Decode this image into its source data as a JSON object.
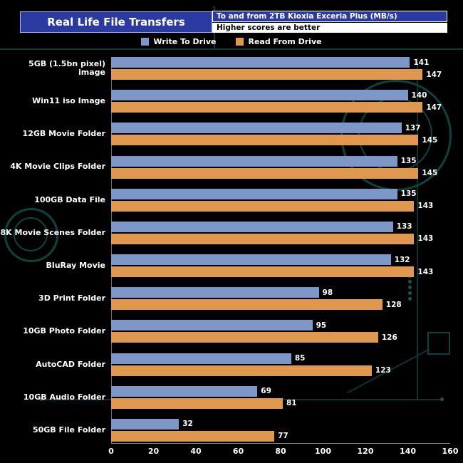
{
  "header": {
    "title": "Real Life File Transfers",
    "subtitle": "To and from 2TB Kioxia Exceria Plus (MB/s)",
    "note": "Higher scores are better"
  },
  "legend": [
    {
      "label": "Write To  Drive",
      "color": "#7d98c8"
    },
    {
      "label": "Read From  Drive",
      "color": "#e0984f"
    }
  ],
  "chart_data": {
    "type": "bar",
    "orientation": "horizontal",
    "title": "Real Life File Transfers",
    "subtitle": "To and from 2TB Kioxia Exceria Plus (MB/s)",
    "note": "Higher scores are better",
    "categories": [
      "5GB (1.5bn pixel) image",
      "Win11 iso Image",
      "12GB Movie Folder",
      "4K Movie Clips Folder",
      "100GB Data File",
      "8K Movie Scenes Folder",
      "BluRay Movie",
      "3D Print Folder",
      "10GB Photo Folder",
      "AutoCAD Folder",
      "10GB Audio Folder",
      "50GB File Folder"
    ],
    "series": [
      {
        "name": "Write To Drive",
        "color": "#7d98c8",
        "values": [
          141,
          140,
          137,
          135,
          135,
          133,
          132,
          98,
          95,
          85,
          69,
          32
        ]
      },
      {
        "name": "Read From Drive",
        "color": "#e0984f",
        "values": [
          147,
          147,
          145,
          145,
          143,
          143,
          143,
          128,
          126,
          123,
          81,
          77
        ]
      }
    ],
    "xlabel": "",
    "ylabel": "",
    "xlim": [
      0,
      160
    ],
    "xticks": [
      0,
      20,
      40,
      60,
      80,
      100,
      120,
      140,
      160
    ],
    "grid": false,
    "legend_position": "top",
    "background": "#000000",
    "value_labels": true
  }
}
